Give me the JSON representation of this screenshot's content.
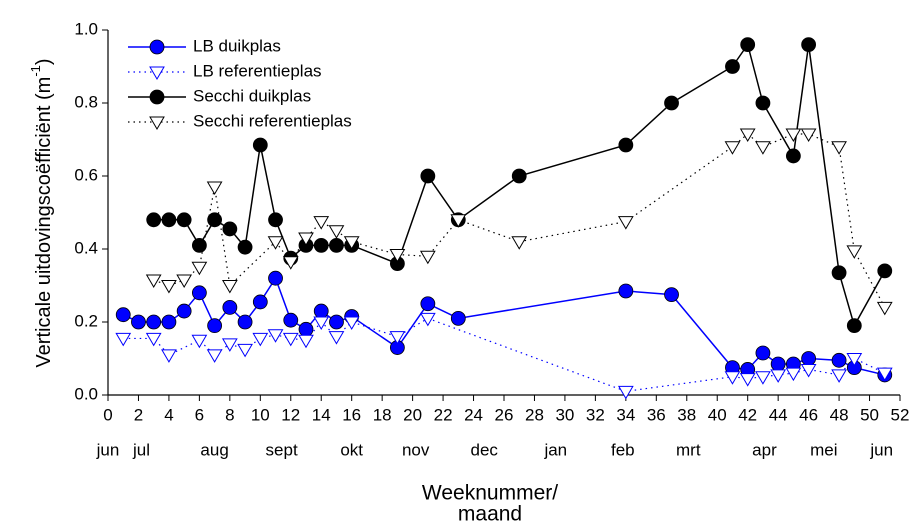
{
  "chart_data": {
    "type": "line",
    "x_label": [
      "Weeknummer/",
      "maand"
    ],
    "y_label": "Verticale uitdovingscoëfficiënt (m",
    "y_label_sup": "-1",
    "y_label_end": ")",
    "xlim": [
      0,
      52
    ],
    "xticks": [
      0,
      2,
      4,
      6,
      8,
      10,
      12,
      14,
      16,
      18,
      20,
      22,
      24,
      26,
      28,
      30,
      32,
      34,
      36,
      38,
      40,
      42,
      44,
      46,
      48,
      50,
      52
    ],
    "ylim": [
      0,
      1
    ],
    "yticks": [
      {
        "value": 0,
        "label": "0.0"
      },
      0.2,
      0.4,
      0.6,
      0.8,
      {
        "value": 1,
        "label": "1.0"
      }
    ],
    "month_labels": [
      {
        "label": "jun",
        "x": 0
      },
      {
        "label": "jul",
        "x": 2.2
      },
      {
        "label": "aug",
        "x": 7
      },
      {
        "label": "sept",
        "x": 11.4
      },
      {
        "label": "okt",
        "x": 16
      },
      {
        "label": "nov",
        "x": 20.2
      },
      {
        "label": "dec",
        "x": 24.7
      },
      {
        "label": "jan",
        "x": 29.4
      },
      {
        "label": "feb",
        "x": 33.8
      },
      {
        "label": "mrt",
        "x": 38.1
      },
      {
        "label": "apr",
        "x": 43.1
      },
      {
        "label": "mei",
        "x": 47
      },
      {
        "label": "jun",
        "x": 50.8
      }
    ],
    "legend": "upper left",
    "series": [
      {
        "name": "LB duikplas",
        "color": "#0000ff",
        "marker": "circle",
        "line": "solid",
        "x": [
          1,
          2,
          3,
          4,
          5,
          6,
          7,
          8,
          9,
          10,
          11,
          12,
          13,
          14,
          15,
          16,
          19,
          21,
          23,
          34,
          37,
          41,
          42,
          43,
          44,
          45,
          46,
          48,
          49,
          51
        ],
        "values": [
          0.22,
          0.2,
          0.2,
          0.2,
          0.23,
          0.28,
          0.19,
          0.24,
          0.2,
          0.255,
          0.32,
          0.205,
          0.18,
          0.23,
          0.2,
          0.215,
          0.13,
          0.25,
          0.21,
          0.285,
          0.275,
          0.075,
          0.07,
          0.115,
          0.085,
          0.085,
          0.1,
          0.095,
          0.075,
          0.055
        ]
      },
      {
        "name": "LB referentieplas",
        "color": "#0000ff",
        "marker": "triangle",
        "line": "dotted",
        "x": [
          1,
          3,
          4,
          6,
          7,
          8,
          9,
          10,
          11,
          12,
          13,
          14,
          15,
          16,
          19,
          21,
          34,
          41,
          42,
          43,
          44,
          45,
          46,
          48,
          49,
          51
        ],
        "values": [
          0.155,
          0.155,
          0.11,
          0.15,
          0.11,
          0.14,
          0.125,
          0.155,
          0.165,
          0.155,
          0.15,
          0.2,
          0.16,
          0.2,
          0.16,
          0.21,
          0.01,
          0.05,
          0.045,
          0.05,
          0.055,
          0.06,
          0.07,
          0.055,
          0.1,
          0.06
        ]
      },
      {
        "name": "Secchi duikplas",
        "color": "#000000",
        "marker": "circle",
        "line": "solid",
        "x": [
          3,
          4,
          5,
          6,
          7,
          8,
          9,
          10,
          11,
          12,
          13,
          14,
          15,
          16,
          19,
          21,
          23,
          27,
          34,
          37,
          41,
          42,
          43,
          45,
          46,
          48,
          49,
          51
        ],
        "values": [
          0.48,
          0.48,
          0.48,
          0.41,
          0.48,
          0.455,
          0.405,
          0.685,
          0.48,
          0.375,
          0.41,
          0.41,
          0.41,
          0.41,
          0.36,
          0.6,
          0.48,
          0.6,
          0.685,
          0.8,
          0.9,
          0.96,
          0.8,
          0.655,
          0.96,
          0.335,
          0.19,
          0.34
        ]
      },
      {
        "name": "Secchi referentieplas",
        "color": "#000000",
        "marker": "triangle",
        "line": "dotted",
        "x": [
          3,
          4,
          5,
          6,
          7,
          8,
          11,
          12,
          13,
          14,
          15,
          16,
          19,
          21,
          23,
          27,
          34,
          41,
          42,
          43,
          45,
          46,
          48,
          49,
          51
        ],
        "values": [
          0.315,
          0.3,
          0.315,
          0.35,
          0.57,
          0.3,
          0.42,
          0.365,
          0.43,
          0.475,
          0.45,
          0.42,
          0.385,
          0.38,
          0.48,
          0.42,
          0.475,
          0.68,
          0.715,
          0.68,
          0.715,
          0.715,
          0.68,
          0.395,
          0.24
        ]
      }
    ]
  }
}
